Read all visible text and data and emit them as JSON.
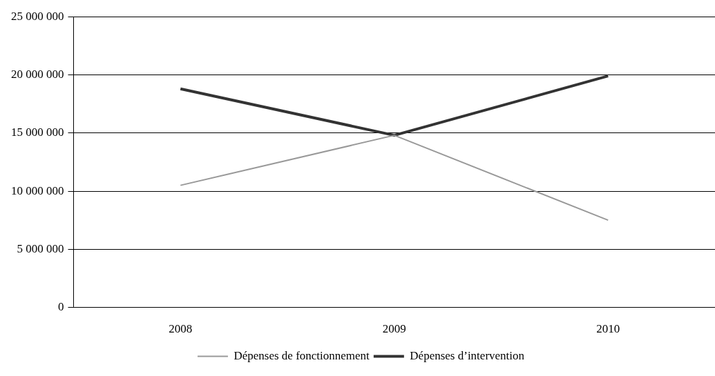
{
  "chart_data": {
    "type": "line",
    "categories": [
      "2008",
      "2009",
      "2010"
    ],
    "series": [
      {
        "name": "Dépenses de fonctionnement",
        "color": "#999999",
        "values": [
          10500000,
          14800000,
          7500000
        ]
      },
      {
        "name": "Dépenses d’intervention",
        "color": "#333333",
        "values": [
          18800000,
          14800000,
          19900000
        ]
      }
    ],
    "ylim": [
      0,
      25000000
    ],
    "yticks": [
      {
        "value": 0,
        "label": "0"
      },
      {
        "value": 5000000,
        "label": "5 000 000"
      },
      {
        "value": 10000000,
        "label": "10 000 000"
      },
      {
        "value": 15000000,
        "label": "15 000 000"
      },
      {
        "value": 20000000,
        "label": "20 000 000"
      },
      {
        "value": 25000000,
        "label": "25 000 000"
      }
    ],
    "grid": "y",
    "legend": "bottom",
    "marker": "none",
    "line_style": "solid"
  }
}
